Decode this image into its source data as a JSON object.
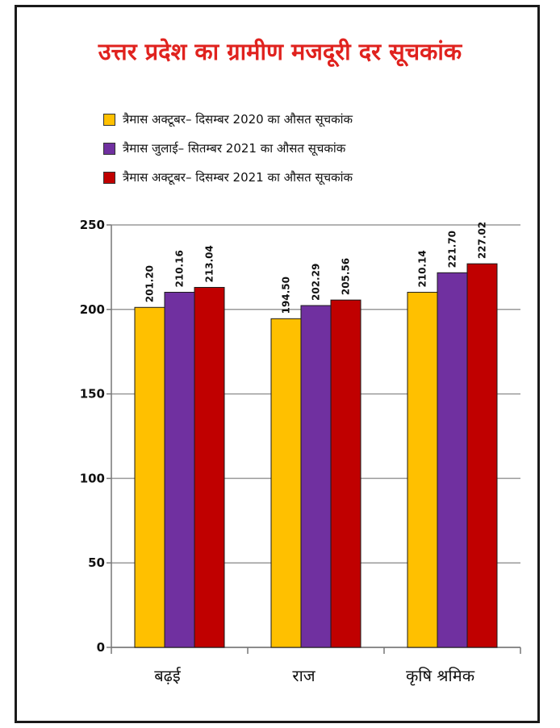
{
  "chart_data": {
    "type": "bar",
    "title": "उत्तर प्रदेश का ग्रामीण मजदूरी दर सूचकांक",
    "categories": [
      "बढ़ई",
      "राज",
      "कृषि श्रमिक"
    ],
    "series": [
      {
        "name": "त्रैमास अक्टूबर– दिसम्बर 2020 का औसत सूचकांक",
        "values": [
          201.2,
          194.5,
          210.14
        ],
        "color": "#ffc000",
        "labels": [
          "201.20",
          "194.50",
          "210.14"
        ]
      },
      {
        "name": "त्रैमास जुलाई– सितम्बर 2021 का औसत सूचकांक",
        "values": [
          210.16,
          202.29,
          221.7
        ],
        "color": "#7030a0",
        "labels": [
          "210.16",
          "202.29",
          "221.70"
        ]
      },
      {
        "name": "त्रैमास अक्टूबर– दिसम्बर 2021 का औसत सूचकांक",
        "values": [
          213.04,
          205.56,
          227.02
        ],
        "color": "#c00000",
        "labels": [
          "213.04",
          "205.56",
          "227.02"
        ]
      }
    ],
    "ylim": [
      0,
      250
    ],
    "yticks": [
      0,
      50,
      100,
      150,
      200,
      250
    ],
    "grid": true,
    "legend_position": "top"
  }
}
